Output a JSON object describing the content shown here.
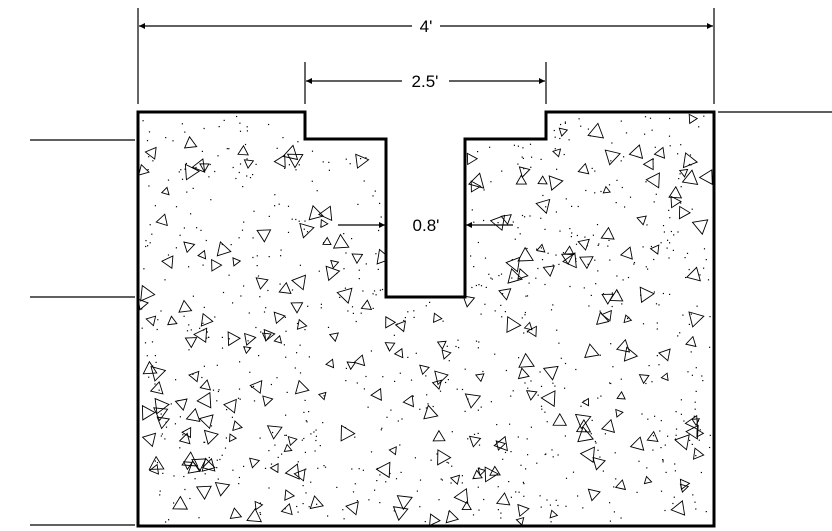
{
  "dimensions": {
    "overall_width": "4'",
    "channel_outer_width": "2.5'",
    "slot_width": "0.8'"
  },
  "colors": {
    "line": "#000000",
    "background": "#ffffff"
  },
  "icons": {
    "aggregate": "triangle-icon"
  }
}
